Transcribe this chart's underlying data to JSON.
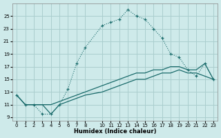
{
  "xlabel": "Humidex (Indice chaleur)",
  "bg_color": "#ceeaea",
  "grid_color": "#aacece",
  "line_color": "#1a6b6b",
  "xlim": [
    -0.5,
    23.5
  ],
  "ylim": [
    8.5,
    27.0
  ],
  "yticks": [
    9,
    11,
    13,
    15,
    17,
    19,
    21,
    23,
    25
  ],
  "xticks": [
    0,
    1,
    2,
    3,
    4,
    5,
    6,
    7,
    8,
    10,
    11,
    12,
    13,
    14,
    15,
    16,
    17,
    18,
    19,
    20,
    21,
    22,
    23
  ],
  "series_peak_x": [
    0,
    1,
    2,
    3,
    4,
    5,
    6,
    7,
    8,
    10,
    11,
    12,
    13,
    14,
    15,
    16,
    17,
    18,
    19,
    20,
    21,
    22,
    23
  ],
  "series_peak_y": [
    12.5,
    11.0,
    11.0,
    9.5,
    9.5,
    11.0,
    13.5,
    17.5,
    20.0,
    23.5,
    24.0,
    24.5,
    26.0,
    25.0,
    24.5,
    23.0,
    21.5,
    19.0,
    18.5,
    16.5,
    15.5,
    17.5,
    15.0
  ],
  "series_high_x": [
    0,
    1,
    2,
    3,
    4,
    5,
    6,
    7,
    8,
    10,
    11,
    12,
    13,
    14,
    15,
    16,
    17,
    18,
    19,
    20,
    21,
    22,
    23
  ],
  "series_high_y": [
    12.5,
    11.0,
    11.0,
    11.0,
    11.0,
    11.5,
    12.0,
    12.5,
    13.0,
    14.0,
    14.5,
    15.0,
    15.5,
    16.0,
    16.0,
    16.5,
    16.5,
    17.0,
    17.0,
    16.5,
    16.5,
    17.5,
    15.0
  ],
  "series_low_x": [
    0,
    1,
    2,
    3,
    4,
    5,
    6,
    7,
    8,
    10,
    11,
    12,
    13,
    14,
    15,
    16,
    17,
    18,
    19,
    20,
    21,
    22,
    23
  ],
  "series_low_y": [
    12.5,
    11.0,
    11.0,
    11.0,
    9.5,
    11.0,
    11.5,
    12.0,
    12.5,
    13.0,
    13.5,
    14.0,
    14.5,
    15.0,
    15.0,
    15.5,
    16.0,
    16.0,
    16.5,
    16.0,
    16.0,
    15.5,
    15.0
  ]
}
